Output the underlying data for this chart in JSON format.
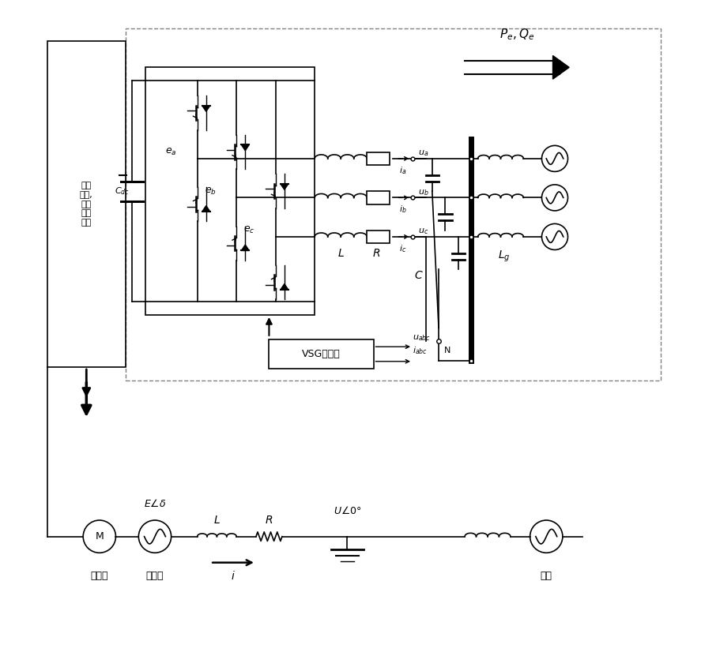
{
  "bg_color": "#ffffff",
  "line_color": "#000000",
  "fig_width": 9.12,
  "fig_height": 8.31,
  "dpi": 100,
  "labels": {
    "wind_box": "风力\n发电,\n储能\n及变\n换器",
    "Pe_Qe": "$P_e,Q_e$",
    "ea": "$e_a$",
    "eb": "$e_b$",
    "ec": "$e_c$",
    "Cdc": "$C_{dc}$",
    "L_top": "$L$",
    "R_top": "$R$",
    "C_top": "$C$",
    "Lg": "$L_g$",
    "ia": "$i_a$",
    "ib": "$i_b$",
    "ic": "$i_c$",
    "ua": "$u_a$",
    "ub": "$u_b$",
    "uc": "$u_c$",
    "N": "N",
    "vsg": "VSG控制器",
    "u_abc": "$u_{abc}$",
    "i_abc": "$i_{abc}$",
    "E_delta": "$E\\angle\\delta$",
    "L_bot": "$L$",
    "R_bot": "$R$",
    "U_angle": "$U\\angle 0°$",
    "i_bot": "$i$",
    "motor": "M",
    "yuan": "原动机",
    "fadian": "发电机",
    "dianwang": "电网"
  }
}
